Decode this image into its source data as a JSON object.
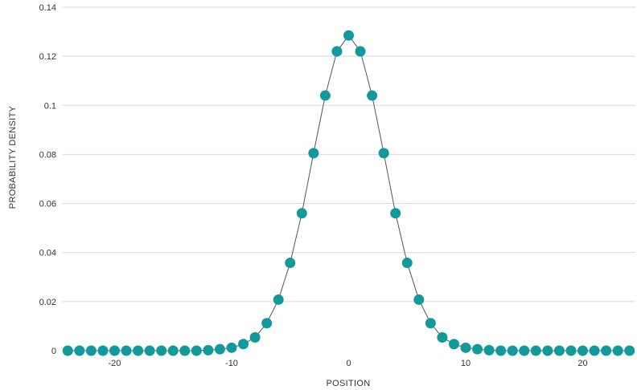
{
  "chart_data": {
    "type": "scatter",
    "title": "",
    "xlabel": "POSITION",
    "ylabel": "PROBABILITY DENSITY",
    "xlim": [
      -24.5,
      24.5
    ],
    "ylim": [
      0,
      0.14
    ],
    "x_ticks": [
      -20,
      -10,
      0,
      10,
      20
    ],
    "x_tick_labels": [
      "-20",
      "-10",
      "0",
      "10",
      "20"
    ],
    "y_ticks": [
      0,
      0.02,
      0.04,
      0.06,
      0.08,
      0.1,
      0.12,
      0.14
    ],
    "y_tick_labels": [
      "0",
      "0.02",
      "0.04",
      "0.06",
      "0.08",
      "0.1",
      "0.12",
      "0.14"
    ],
    "grid": true,
    "legend": false,
    "connect_points": true,
    "marker_color": "#12999b",
    "line_color": "#555555",
    "series": [
      {
        "x": [
          -24,
          -23,
          -22,
          -21,
          -20,
          -19,
          -18,
          -17,
          -16,
          -15,
          -14,
          -13,
          -12,
          -11,
          -10,
          -9,
          -8,
          -7,
          -6,
          -5,
          -4,
          -3,
          -2,
          -1,
          0,
          1,
          2,
          3,
          4,
          5,
          6,
          7,
          8,
          9,
          10,
          11,
          12,
          13,
          14,
          15,
          16,
          17,
          18,
          19,
          20,
          21,
          22,
          23,
          24
        ],
        "values": [
          0,
          0,
          0,
          0,
          0,
          0,
          0,
          0,
          0,
          0,
          0,
          0,
          0.0002,
          0.0006,
          0.0012,
          0.0027,
          0.0054,
          0.0112,
          0.0208,
          0.0358,
          0.056,
          0.0805,
          0.104,
          0.122,
          0.1285,
          0.122,
          0.104,
          0.0805,
          0.056,
          0.0358,
          0.0208,
          0.0112,
          0.0054,
          0.0027,
          0.0012,
          0.0006,
          0.0002,
          0,
          0,
          0,
          0,
          0,
          0,
          0,
          0,
          0,
          0,
          0,
          0
        ]
      }
    ]
  }
}
